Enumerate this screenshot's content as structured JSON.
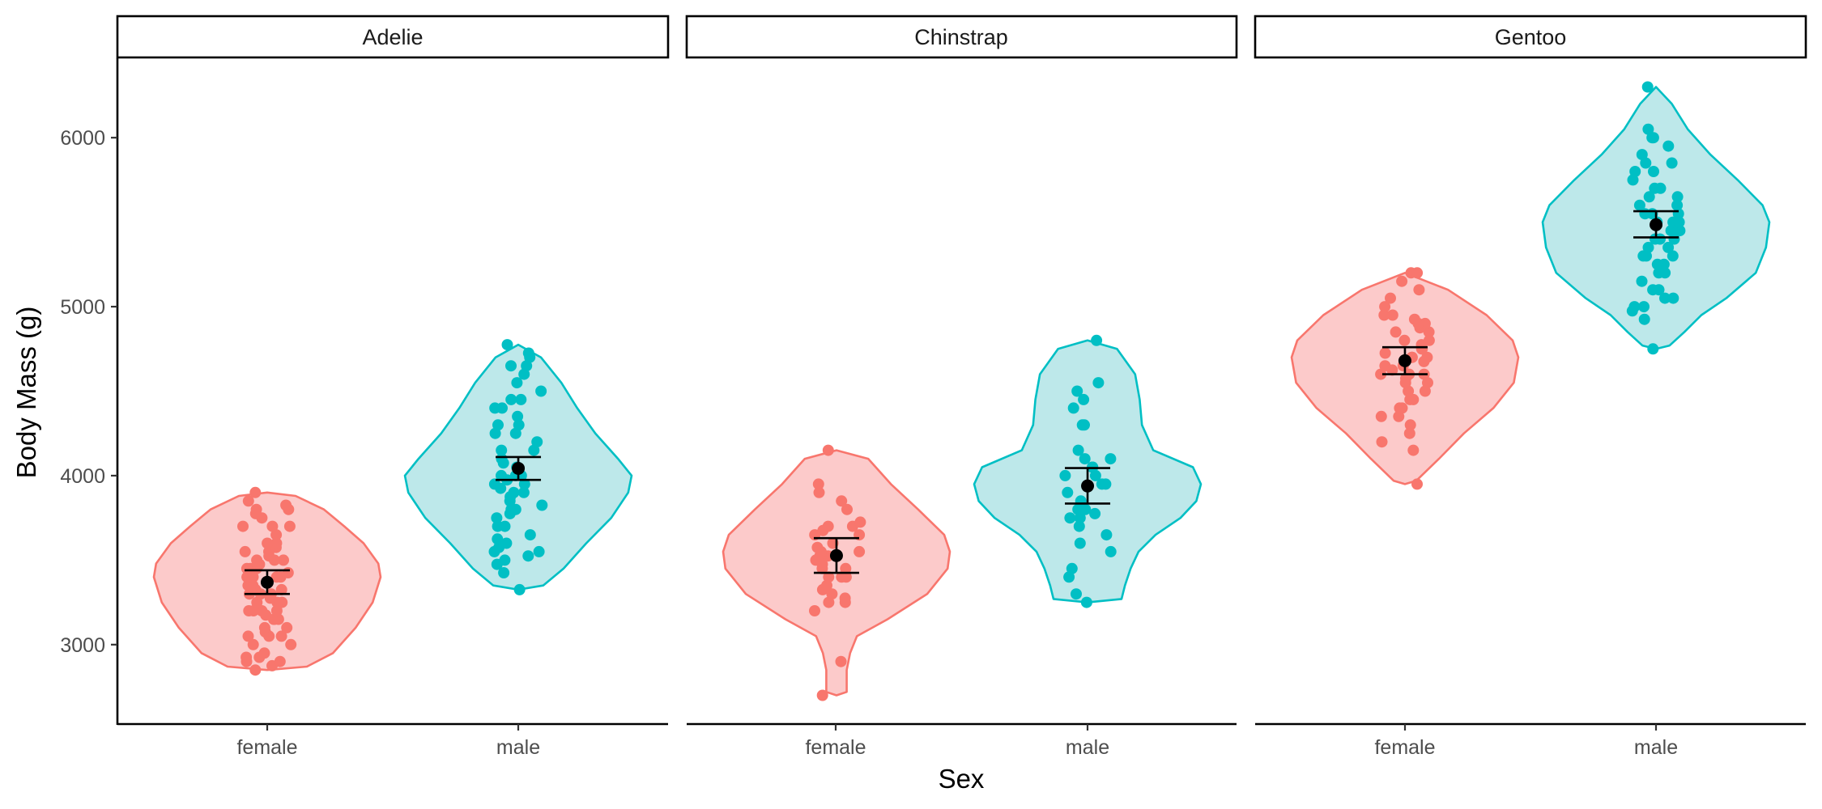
{
  "chart_data": {
    "type": "violin",
    "facet_var": "species",
    "panels": [
      "Adelie",
      "Chinstrap",
      "Gentoo"
    ],
    "categories": [
      "female",
      "male"
    ],
    "xlabel": "Sex",
    "ylabel": "Body Mass (g)",
    "ylim": [
      2530,
      6470
    ],
    "yticks": [
      3000,
      4000,
      5000,
      6000
    ],
    "legend": "none",
    "grid": false,
    "colors": {
      "female": "#F8766D",
      "female_fill": "#FCCACA",
      "male": "#00BFC4",
      "male_fill": "#BDE8EA",
      "summary": "#000000"
    },
    "groups": [
      {
        "panel": "Adelie",
        "sex": "female",
        "mean": 3369,
        "ci": [
          3300,
          3440
        ],
        "profile": [
          [
            2850,
            0.0
          ],
          [
            2870,
            0.35
          ],
          [
            2950,
            0.58
          ],
          [
            3100,
            0.78
          ],
          [
            3250,
            0.93
          ],
          [
            3400,
            1.0
          ],
          [
            3480,
            0.98
          ],
          [
            3600,
            0.85
          ],
          [
            3700,
            0.68
          ],
          [
            3800,
            0.5
          ],
          [
            3880,
            0.25
          ],
          [
            3900,
            0.0
          ]
        ],
        "points": [
          2850,
          2875,
          2900,
          2900,
          2925,
          2925,
          2950,
          3000,
          3000,
          3050,
          3050,
          3050,
          3075,
          3100,
          3100,
          3150,
          3150,
          3150,
          3175,
          3200,
          3200,
          3200,
          3200,
          3250,
          3250,
          3250,
          3275,
          3300,
          3300,
          3300,
          3325,
          3325,
          3350,
          3350,
          3350,
          3400,
          3400,
          3400,
          3400,
          3425,
          3450,
          3450,
          3450,
          3475,
          3500,
          3500,
          3500,
          3525,
          3550,
          3550,
          3575,
          3600,
          3600,
          3650,
          3700,
          3700,
          3700,
          3750,
          3775,
          3800,
          3800,
          3825,
          3850,
          3900
        ]
      },
      {
        "panel": "Adelie",
        "sex": "male",
        "mean": 4043,
        "ci": [
          3975,
          4110
        ],
        "profile": [
          [
            3325,
            0.0
          ],
          [
            3350,
            0.22
          ],
          [
            3450,
            0.4
          ],
          [
            3600,
            0.6
          ],
          [
            3750,
            0.82
          ],
          [
            3900,
            0.97
          ],
          [
            4000,
            1.0
          ],
          [
            4100,
            0.88
          ],
          [
            4250,
            0.68
          ],
          [
            4400,
            0.52
          ],
          [
            4550,
            0.38
          ],
          [
            4700,
            0.2
          ],
          [
            4775,
            0.0
          ]
        ],
        "points": [
          3325,
          3425,
          3475,
          3500,
          3525,
          3550,
          3550,
          3575,
          3600,
          3625,
          3650,
          3700,
          3700,
          3750,
          3775,
          3800,
          3800,
          3825,
          3850,
          3875,
          3900,
          3900,
          3925,
          3950,
          3950,
          3975,
          4000,
          4000,
          4000,
          4050,
          4050,
          4075,
          4100,
          4150,
          4150,
          4200,
          4250,
          4250,
          4300,
          4300,
          4350,
          4400,
          4400,
          4450,
          4450,
          4500,
          4550,
          4600,
          4650,
          4650,
          4700,
          4725,
          4775
        ]
      },
      {
        "panel": "Chinstrap",
        "sex": "female",
        "mean": 3527,
        "ci": [
          3425,
          3630
        ],
        "profile": [
          [
            2700,
            0.0
          ],
          [
            2720,
            0.09
          ],
          [
            2850,
            0.09
          ],
          [
            2950,
            0.12
          ],
          [
            3050,
            0.18
          ],
          [
            3150,
            0.45
          ],
          [
            3300,
            0.8
          ],
          [
            3450,
            0.98
          ],
          [
            3550,
            1.0
          ],
          [
            3650,
            0.95
          ],
          [
            3800,
            0.72
          ],
          [
            3950,
            0.48
          ],
          [
            4100,
            0.28
          ],
          [
            4150,
            0.0
          ]
        ],
        "points": [
          2700,
          2900,
          3200,
          3250,
          3250,
          3275,
          3300,
          3325,
          3350,
          3400,
          3400,
          3400,
          3450,
          3450,
          3475,
          3500,
          3525,
          3525,
          3550,
          3550,
          3575,
          3600,
          3650,
          3650,
          3675,
          3700,
          3700,
          3725,
          3800,
          3850,
          3900,
          3950,
          4150
        ]
      },
      {
        "panel": "Chinstrap",
        "sex": "male",
        "mean": 3939,
        "ci": [
          3835,
          4045
        ],
        "profile": [
          [
            3250,
            0.0
          ],
          [
            3270,
            0.3
          ],
          [
            3350,
            0.33
          ],
          [
            3450,
            0.38
          ],
          [
            3550,
            0.45
          ],
          [
            3650,
            0.6
          ],
          [
            3750,
            0.82
          ],
          [
            3850,
            0.96
          ],
          [
            3950,
            1.0
          ],
          [
            4050,
            0.93
          ],
          [
            4150,
            0.58
          ],
          [
            4300,
            0.48
          ],
          [
            4450,
            0.46
          ],
          [
            4600,
            0.42
          ],
          [
            4750,
            0.26
          ],
          [
            4800,
            0.0
          ]
        ],
        "points": [
          3250,
          3300,
          3400,
          3450,
          3550,
          3600,
          3650,
          3700,
          3750,
          3750,
          3775,
          3800,
          3800,
          3850,
          3900,
          3950,
          3950,
          4000,
          4000,
          4050,
          4050,
          4100,
          4100,
          4150,
          4300,
          4300,
          4400,
          4450,
          4500,
          4550,
          4800
        ]
      },
      {
        "panel": "Gentoo",
        "sex": "female",
        "mean": 4680,
        "ci": [
          4600,
          4760
        ],
        "profile": [
          [
            3950,
            0.0
          ],
          [
            3970,
            0.1
          ],
          [
            4100,
            0.3
          ],
          [
            4250,
            0.52
          ],
          [
            4400,
            0.78
          ],
          [
            4550,
            0.96
          ],
          [
            4700,
            1.0
          ],
          [
            4800,
            0.95
          ],
          [
            4950,
            0.72
          ],
          [
            5100,
            0.38
          ],
          [
            5200,
            0.0
          ]
        ],
        "points": [
          3950,
          4150,
          4200,
          4250,
          4300,
          4350,
          4350,
          4400,
          4400,
          4450,
          4450,
          4500,
          4500,
          4550,
          4550,
          4575,
          4600,
          4600,
          4600,
          4625,
          4650,
          4650,
          4675,
          4700,
          4700,
          4700,
          4725,
          4750,
          4750,
          4775,
          4800,
          4800,
          4850,
          4850,
          4875,
          4900,
          4900,
          4925,
          4950,
          4950,
          5000,
          5050,
          5100,
          5150,
          5200,
          5200
        ]
      },
      {
        "panel": "Gentoo",
        "sex": "male",
        "mean": 5485,
        "ci": [
          5410,
          5565
        ],
        "profile": [
          [
            4750,
            0.0
          ],
          [
            4770,
            0.12
          ],
          [
            4850,
            0.25
          ],
          [
            4950,
            0.4
          ],
          [
            5050,
            0.62
          ],
          [
            5200,
            0.88
          ],
          [
            5350,
            0.97
          ],
          [
            5500,
            1.0
          ],
          [
            5600,
            0.94
          ],
          [
            5750,
            0.72
          ],
          [
            5900,
            0.48
          ],
          [
            6050,
            0.28
          ],
          [
            6200,
            0.14
          ],
          [
            6300,
            0.0
          ]
        ],
        "points": [
          4750,
          4925,
          4975,
          5000,
          5000,
          5050,
          5050,
          5100,
          5100,
          5150,
          5200,
          5200,
          5250,
          5250,
          5300,
          5300,
          5300,
          5350,
          5350,
          5400,
          5400,
          5400,
          5450,
          5450,
          5500,
          5500,
          5500,
          5550,
          5550,
          5550,
          5600,
          5600,
          5650,
          5650,
          5700,
          5700,
          5750,
          5800,
          5800,
          5850,
          5850,
          5900,
          5950,
          6000,
          6000,
          6050,
          6300
        ]
      }
    ]
  }
}
